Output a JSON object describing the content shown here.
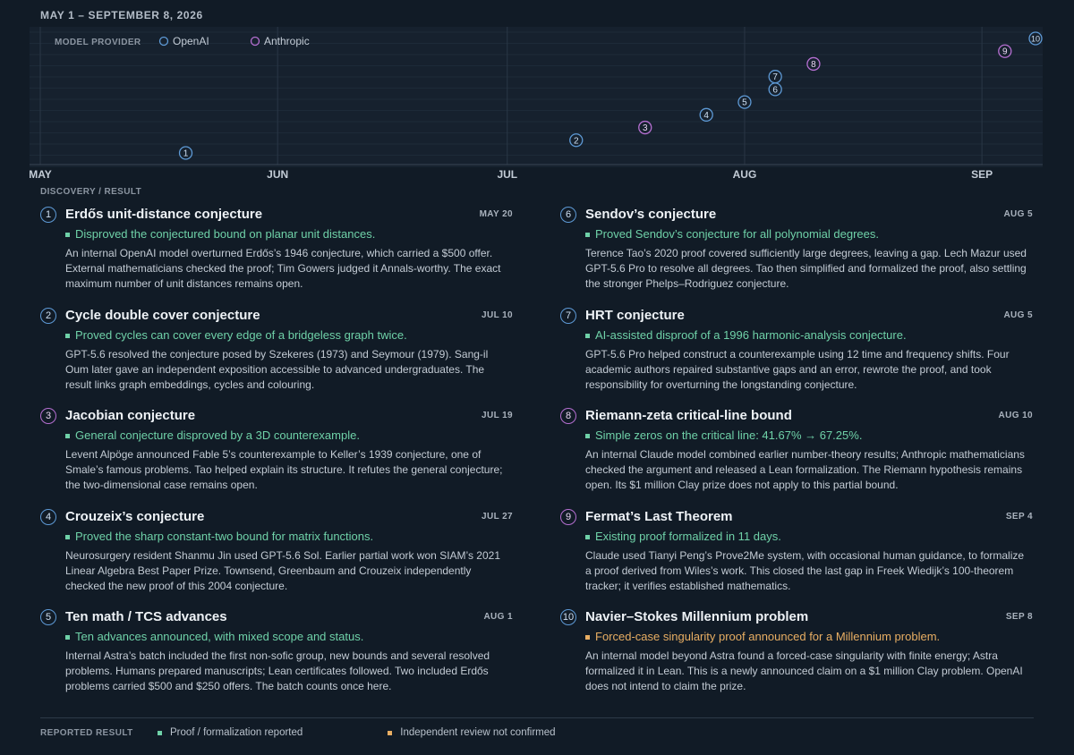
{
  "range_title": "MAY 1 – SEPTEMBER 8, 2026",
  "section_label": "DISCOVERY / RESULT",
  "colors": {
    "openai": "#5e9ad6",
    "anthropic": "#b56fd1",
    "confirmed": "#6fd1a8",
    "unconfirmed": "#e8ae63",
    "background": "#111b26"
  },
  "chart_data": {
    "type": "scatter",
    "title": "MAY 1 – SEPTEMBER 8, 2026",
    "legend_title": "MODEL PROVIDER",
    "legend_position": "top-left",
    "grid": true,
    "x_range": [
      "2026-05-01",
      "2026-09-08"
    ],
    "x_tick_labels": [
      "MAY",
      "JUN",
      "JUL",
      "AUG",
      "SEP"
    ],
    "x_ticks": [
      "2026-05-01",
      "2026-06-01",
      "2026-07-01",
      "2026-08-01",
      "2026-09-01"
    ],
    "y_range": [
      0,
      10
    ],
    "series": [
      {
        "name": "OpenAI",
        "color": "#5e9ad6"
      },
      {
        "name": "Anthropic",
        "color": "#b56fd1"
      }
    ],
    "points": [
      {
        "label": "1",
        "date": "2026-05-20",
        "rank": 1,
        "provider": "OpenAI"
      },
      {
        "label": "2",
        "date": "2026-07-10",
        "rank": 2,
        "provider": "OpenAI"
      },
      {
        "label": "3",
        "date": "2026-07-19",
        "rank": 3,
        "provider": "Anthropic"
      },
      {
        "label": "4",
        "date": "2026-07-27",
        "rank": 4,
        "provider": "OpenAI"
      },
      {
        "label": "5",
        "date": "2026-08-01",
        "rank": 5,
        "provider": "OpenAI"
      },
      {
        "label": "6",
        "date": "2026-08-05",
        "rank": 6,
        "provider": "OpenAI"
      },
      {
        "label": "7",
        "date": "2026-08-05",
        "rank": 7,
        "provider": "OpenAI"
      },
      {
        "label": "8",
        "date": "2026-08-10",
        "rank": 8,
        "provider": "Anthropic"
      },
      {
        "label": "9",
        "date": "2026-09-04",
        "rank": 9,
        "provider": "Anthropic"
      },
      {
        "label": "10",
        "date": "2026-09-08",
        "rank": 10,
        "provider": "OpenAI"
      }
    ]
  },
  "entries": [
    {
      "num": "1",
      "provider": "OpenAI",
      "name": "Erdős unit-distance conjecture",
      "date": "MAY 20",
      "result": "Disproved the conjectured bound on planar unit distances.",
      "status": "confirmed",
      "description": "An internal OpenAI model overturned Erdős’s 1946 conjecture, which carried a $500 offer. External mathematicians checked the proof; Tim Gowers judged it Annals-worthy. The exact maximum number of unit distances remains open."
    },
    {
      "num": "2",
      "provider": "OpenAI",
      "name": "Cycle double cover conjecture",
      "date": "JUL 10",
      "result": "Proved cycles can cover every edge of a bridgeless graph twice.",
      "status": "confirmed",
      "description": "GPT-5.6 resolved the conjecture posed by Szekeres (1973) and Seymour (1979). Sang-il Oum later gave an independent exposition accessible to advanced undergraduates. The result links graph embeddings, cycles and colouring."
    },
    {
      "num": "3",
      "provider": "Anthropic",
      "name": "Jacobian conjecture",
      "date": "JUL 19",
      "result": "General conjecture disproved by a 3D counterexample.",
      "status": "confirmed",
      "description": "Levent Alpöge announced Fable 5’s counterexample to Keller’s 1939 conjecture, one of Smale’s famous problems. Tao helped explain its structure. It refutes the general conjecture; the two-dimensional case remains open."
    },
    {
      "num": "4",
      "provider": "OpenAI",
      "name": "Crouzeix’s conjecture",
      "date": "JUL 27",
      "result": "Proved the sharp constant-two bound for matrix functions.",
      "status": "confirmed",
      "description": "Neurosurgery resident Shanmu Jin used GPT-5.6 Sol. Earlier partial work won SIAM’s 2021 Linear Algebra Best Paper Prize. Townsend, Greenbaum and Crouzeix independently checked the new proof of this 2004 conjecture."
    },
    {
      "num": "5",
      "provider": "OpenAI",
      "name": "Ten math / TCS advances",
      "date": "AUG 1",
      "result": "Ten advances announced, with mixed scope and status.",
      "status": "confirmed",
      "description": "Internal Astra’s batch included the first non-sofic group, new bounds and several resolved problems. Humans prepared manuscripts; Lean certificates followed. Two included Erdős problems carried $500 and $250 offers. The batch counts once here."
    },
    {
      "num": "6",
      "provider": "OpenAI",
      "name": "Sendov’s conjecture",
      "date": "AUG 5",
      "result": "Proved Sendov’s conjecture for all polynomial degrees.",
      "status": "confirmed",
      "description": "Terence Tao’s 2020 proof covered sufficiently large degrees, leaving a gap. Lech Mazur used GPT-5.6 Pro to resolve all degrees. Tao then simplified and formalized the proof, also settling the stronger Phelps–Rodriguez conjecture."
    },
    {
      "num": "7",
      "provider": "OpenAI",
      "name": "HRT conjecture",
      "date": "AUG 5",
      "result": "AI-assisted disproof of a 1996 harmonic-analysis conjecture.",
      "status": "confirmed",
      "description": "GPT-5.6 Pro helped construct a counterexample using 12 time and frequency shifts. Four academic authors repaired substantive gaps and an error, rewrote the proof, and took responsibility for overturning the longstanding conjecture."
    },
    {
      "num": "8",
      "provider": "Anthropic",
      "name": "Riemann-zeta critical-line bound",
      "date": "AUG 10",
      "result": "Simple zeros on the critical line: 41.67% → 67.25%.",
      "status": "confirmed",
      "description": "An internal Claude model combined earlier number-theory results; Anthropic mathematicians checked the argument and released a Lean formalization. The Riemann hypothesis remains open. Its $1 million Clay prize does not apply to this partial bound."
    },
    {
      "num": "9",
      "provider": "Anthropic",
      "name": "Fermat’s Last Theorem",
      "date": "SEP 4",
      "result": "Existing proof formalized in 11 days.",
      "status": "confirmed",
      "description": "Claude used Tianyi Peng’s Prove2Me system, with occasional human guidance, to formalize a proof derived from Wiles’s work. This closed the last gap in Freek Wiedijk’s 100-theorem tracker; it verifies established mathematics."
    },
    {
      "num": "10",
      "provider": "OpenAI",
      "name": "Navier–Stokes Millennium problem",
      "date": "SEP 8",
      "result": "Forced-case singularity proof announced for a Millennium problem.",
      "status": "pending",
      "description": "An internal model beyond Astra found a forced-case singularity with finite energy; Astra formalized it in Lean. This is a newly announced claim on a $1 million Clay problem. OpenAI does not intend to claim the prize."
    }
  ],
  "footer": {
    "label": "REPORTED RESULT",
    "items": [
      {
        "label": "Proof / formalization reported",
        "color": "#6fd1a8"
      },
      {
        "label": "Independent review not confirmed",
        "color": "#e8ae63"
      }
    ]
  }
}
